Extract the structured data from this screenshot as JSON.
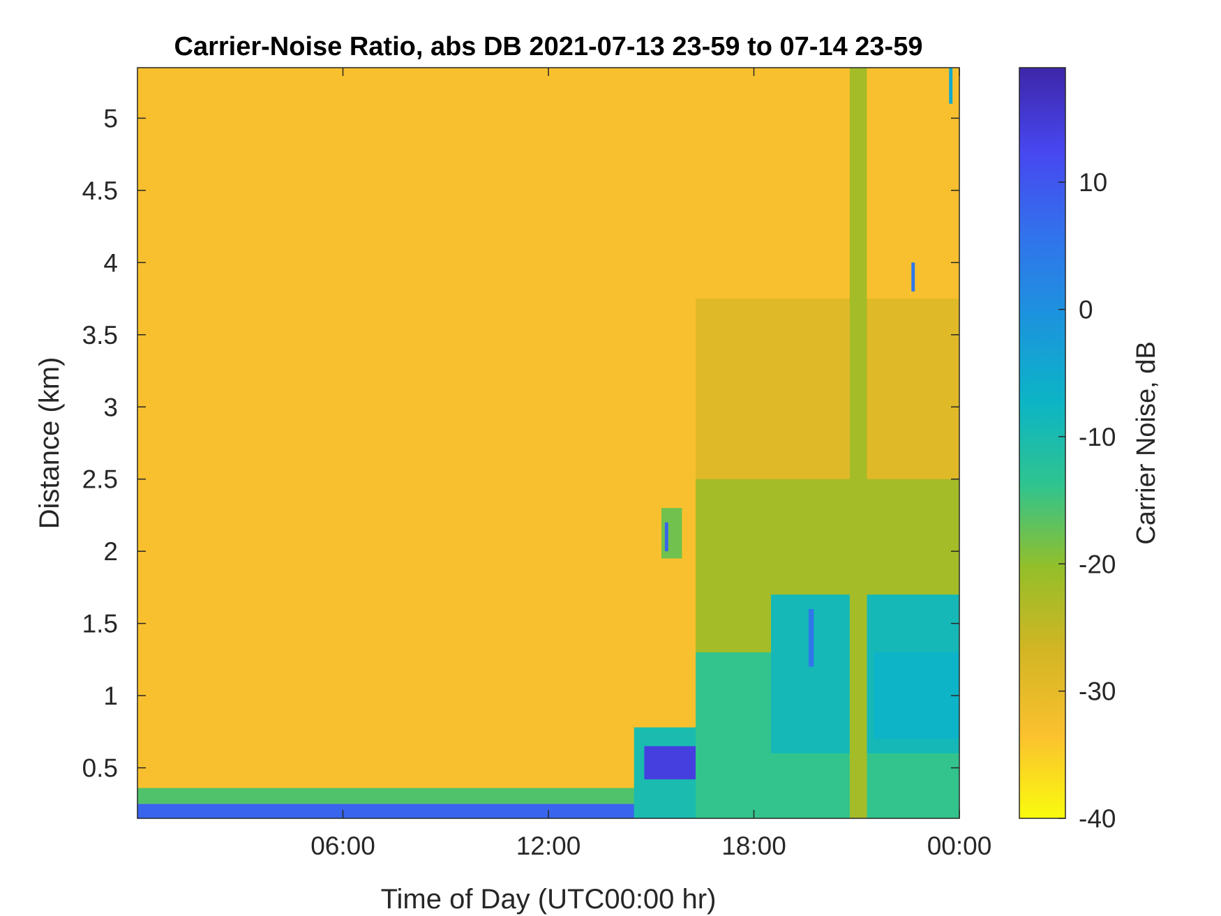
{
  "chart_data": {
    "type": "heatmap",
    "title": "Carrier-Noise Ratio, abs DB 2021-07-13 23-59 to 07-14 23-59",
    "xlabel": "Time of Day (UTC00:00 hr)",
    "ylabel": "Distance (km)",
    "colorbar_label": "Carrier Noise, dB",
    "xlim_hours": [
      0,
      24
    ],
    "x_ticks": [
      {
        "value": 6,
        "label": "06:00"
      },
      {
        "value": 12,
        "label": "12:00"
      },
      {
        "value": 18,
        "label": "18:00"
      },
      {
        "value": 24,
        "label": "00:00"
      }
    ],
    "ylim": [
      0.15,
      5.35
    ],
    "y_ticks": [
      {
        "value": 0.5,
        "label": "0.5"
      },
      {
        "value": 1,
        "label": "1"
      },
      {
        "value": 1.5,
        "label": "1.5"
      },
      {
        "value": 2,
        "label": "2"
      },
      {
        "value": 2.5,
        "label": "2.5"
      },
      {
        "value": 3,
        "label": "3"
      },
      {
        "value": 3.5,
        "label": "3.5"
      },
      {
        "value": 4,
        "label": "4"
      },
      {
        "value": 4.5,
        "label": "4.5"
      },
      {
        "value": 5,
        "label": "5"
      }
    ],
    "clim": [
      -40,
      19
    ],
    "colorbar_ticks": [
      {
        "value": 10,
        "label": "10"
      },
      {
        "value": 0,
        "label": "0"
      },
      {
        "value": -10,
        "label": "-10"
      },
      {
        "value": -20,
        "label": "-20"
      },
      {
        "value": -30,
        "label": "-30"
      },
      {
        "value": -40,
        "label": "-40"
      }
    ],
    "colormap": "parula-reversed",
    "colormap_stops": [
      "#f9fb0e",
      "#fbc12f",
      "#d3b524",
      "#94bf29",
      "#2fc48f",
      "#0cb4c6",
      "#1c94dd",
      "#3272ec",
      "#4747f0",
      "#3e26a8"
    ],
    "grid": false,
    "regions": [
      {
        "t0": 0,
        "t1": 24,
        "d0": 0.15,
        "d1": 5.35,
        "value": -33
      },
      {
        "t0": 0,
        "t1": 14.8,
        "d0": 0.25,
        "d1": 0.36,
        "value": -16
      },
      {
        "t0": 0,
        "t1": 14.8,
        "d0": 0.15,
        "d1": 0.25,
        "value": 8
      },
      {
        "t0": 14.5,
        "t1": 16.5,
        "d0": 0.15,
        "d1": 0.78,
        "value": -10
      },
      {
        "t0": 14.8,
        "t1": 16.3,
        "d0": 0.42,
        "d1": 0.65,
        "value": 14
      },
      {
        "t0": 15.3,
        "t1": 15.9,
        "d0": 1.95,
        "d1": 2.3,
        "value": -18
      },
      {
        "t0": 15.4,
        "t1": 15.5,
        "d0": 2.0,
        "d1": 2.2,
        "value": 8
      },
      {
        "t0": 16.3,
        "t1": 24,
        "d0": 2.4,
        "d1": 3.75,
        "value": -29
      },
      {
        "t0": 16.3,
        "t1": 24,
        "d0": 1.3,
        "d1": 2.5,
        "value": -22
      },
      {
        "t0": 16.3,
        "t1": 24,
        "d0": 0.15,
        "d1": 1.3,
        "value": -14
      },
      {
        "t0": 18.5,
        "t1": 24,
        "d0": 0.6,
        "d1": 1.7,
        "value": -9
      },
      {
        "t0": 21.5,
        "t1": 24,
        "d0": 0.7,
        "d1": 1.3,
        "value": -7
      },
      {
        "t0": 20.8,
        "t1": 21.3,
        "d0": 0.15,
        "d1": 5.35,
        "value": -22
      },
      {
        "t0": 19.6,
        "t1": 19.75,
        "d0": 1.2,
        "d1": 1.6,
        "value": 5
      },
      {
        "t0": 22.6,
        "t1": 22.7,
        "d0": 3.8,
        "d1": 4.0,
        "value": 5
      },
      {
        "t0": 23.7,
        "t1": 23.8,
        "d0": 5.1,
        "d1": 5.35,
        "value": -5
      }
    ]
  }
}
